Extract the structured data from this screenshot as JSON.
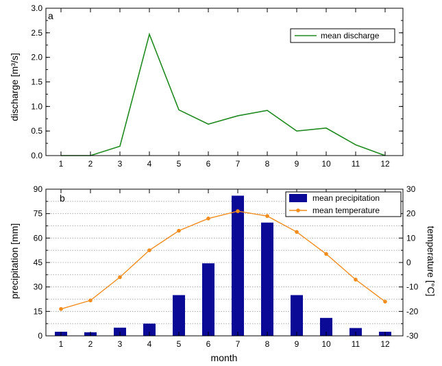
{
  "chart_data": [
    {
      "panel": "a",
      "type": "line",
      "title": "",
      "xlabel": "",
      "ylabel": "discharge [m³/s]",
      "categories": [
        "1",
        "2",
        "3",
        "4",
        "5",
        "6",
        "7",
        "8",
        "9",
        "10",
        "11",
        "12"
      ],
      "ylim": [
        0,
        3.0
      ],
      "yticks": [
        "0.0",
        "0.5",
        "1.0",
        "1.5",
        "2.0",
        "2.5",
        "3.0"
      ],
      "grid": false,
      "legend_position": "top-right",
      "series": [
        {
          "name": "mean discharge",
          "color": "#1f8a1f",
          "values": [
            0.0,
            0.0,
            0.19,
            2.47,
            0.93,
            0.64,
            0.81,
            0.92,
            0.5,
            0.56,
            0.22,
            0.0
          ]
        }
      ]
    },
    {
      "panel": "b",
      "type": "bar",
      "title": "",
      "xlabel": "month",
      "ylabel": "precipitation [mm]",
      "y2label": "temperature [°C]",
      "categories": [
        "1",
        "2",
        "3",
        "4",
        "5",
        "6",
        "7",
        "8",
        "9",
        "10",
        "11",
        "12"
      ],
      "ylim": [
        0,
        90
      ],
      "yticks": [
        "0",
        "15",
        "30",
        "45",
        "60",
        "75",
        "90"
      ],
      "y2lim": [
        -30,
        30
      ],
      "y2ticks": [
        "-30",
        "-20",
        "-10",
        "0",
        "10",
        "20",
        "30"
      ],
      "grid": true,
      "legend_position": "top-right",
      "series": [
        {
          "name": "mean precipitation",
          "kind": "bar",
          "axis": "left",
          "color": "#0a0a96",
          "values": [
            2.5,
            2.2,
            5.0,
            7.5,
            25.0,
            44.5,
            86.0,
            69.5,
            25.0,
            11.0,
            4.8,
            2.5
          ]
        },
        {
          "name": "mean temperature",
          "kind": "line",
          "axis": "right",
          "color": "#f28c1c",
          "values": [
            -19.0,
            -15.5,
            -6.0,
            5.0,
            13.0,
            18.0,
            21.0,
            19.0,
            12.5,
            3.5,
            -7.0,
            -16.0
          ]
        }
      ]
    }
  ]
}
